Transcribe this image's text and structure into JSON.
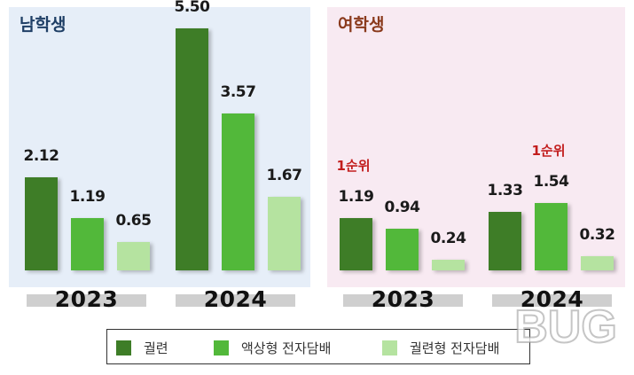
{
  "colors": {
    "dark": "#3e7d27",
    "mid": "#52b83a",
    "light": "#b5e3a0",
    "red": "#c21d1d",
    "navy": "#1f3f66",
    "brown": "#8a3a1c"
  },
  "legend": [
    {
      "label": "궐련",
      "color": "#3e7d27"
    },
    {
      "label": "액상형 전자담배",
      "color": "#52b83a"
    },
    {
      "label": "궐련형 전자담배",
      "color": "#b5e3a0"
    }
  ],
  "watermark": {
    "text": "BUG"
  },
  "chart_data": [
    {
      "type": "bar",
      "title": "남학생",
      "categories": [
        "2023",
        "2024"
      ],
      "series": [
        {
          "name": "궐련",
          "values": [
            2.12,
            5.5
          ]
        },
        {
          "name": "액상형 전자담배",
          "values": [
            1.19,
            3.57
          ]
        },
        {
          "name": "궐련형 전자담배",
          "values": [
            0.65,
            1.67
          ]
        }
      ],
      "value_labels": [
        [
          "2.12",
          "1.19",
          "0.65"
        ],
        [
          "5.50",
          "3.57",
          "1.67"
        ]
      ],
      "annotations": []
    },
    {
      "type": "bar",
      "title": "여학생",
      "categories": [
        "2023",
        "2024"
      ],
      "series": [
        {
          "name": "궐련",
          "values": [
            1.19,
            1.33
          ]
        },
        {
          "name": "액상형 전자담배",
          "values": [
            0.94,
            1.54
          ]
        },
        {
          "name": "궐련형 전자담배",
          "values": [
            0.24,
            0.32
          ]
        }
      ],
      "value_labels": [
        [
          "1.19",
          "0.94",
          "0.24"
        ],
        [
          "1.33",
          "1.54",
          "0.32"
        ]
      ],
      "annotations": [
        {
          "text": "1순위",
          "category": "2023",
          "series": 0
        },
        {
          "text": "1순위",
          "category": "2024",
          "series": 1
        }
      ]
    }
  ]
}
